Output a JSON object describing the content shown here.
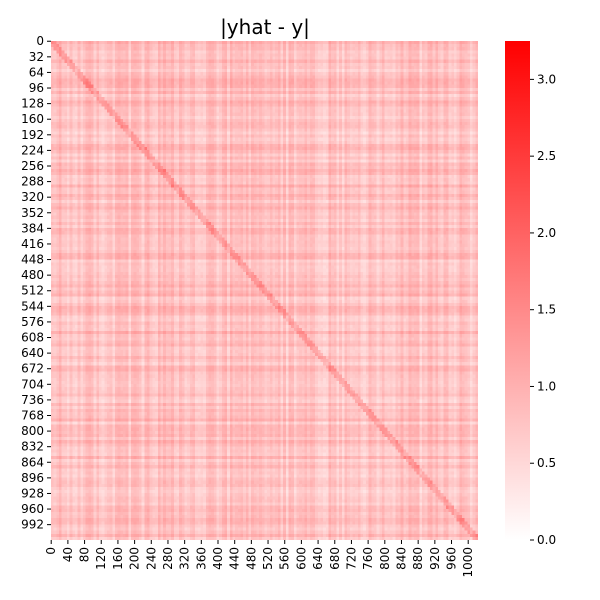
{
  "chart_data": {
    "type": "heatmap",
    "title": "|yhat - y|",
    "xlabel": "",
    "ylabel": "",
    "matrix_size": 1024,
    "x_tick_labels": [
      "0",
      "40",
      "80",
      "120",
      "160",
      "200",
      "240",
      "280",
      "320",
      "360",
      "400",
      "440",
      "480",
      "520",
      "560",
      "600",
      "640",
      "680",
      "720",
      "760",
      "800",
      "840",
      "880",
      "920",
      "960",
      "1000"
    ],
    "y_tick_labels": [
      "0",
      "32",
      "64",
      "96",
      "128",
      "160",
      "192",
      "224",
      "256",
      "288",
      "320",
      "352",
      "384",
      "416",
      "448",
      "480",
      "512",
      "544",
      "576",
      "608",
      "640",
      "672",
      "704",
      "736",
      "768",
      "800",
      "832",
      "864",
      "896",
      "928",
      "960",
      "992"
    ],
    "colorbar": {
      "vmin": 0.0,
      "vmax": 3.25,
      "tick_labels": [
        "0.0",
        "0.5",
        "1.0",
        "1.5",
        "2.0",
        "2.5",
        "3.0"
      ],
      "color_low": "#ffffff",
      "color_high": "#ff0000"
    },
    "value_pattern": {
      "typical_range": [
        0.3,
        1.3
      ],
      "diagonal_feature": "slightly elevated values along the main diagonal"
    }
  }
}
